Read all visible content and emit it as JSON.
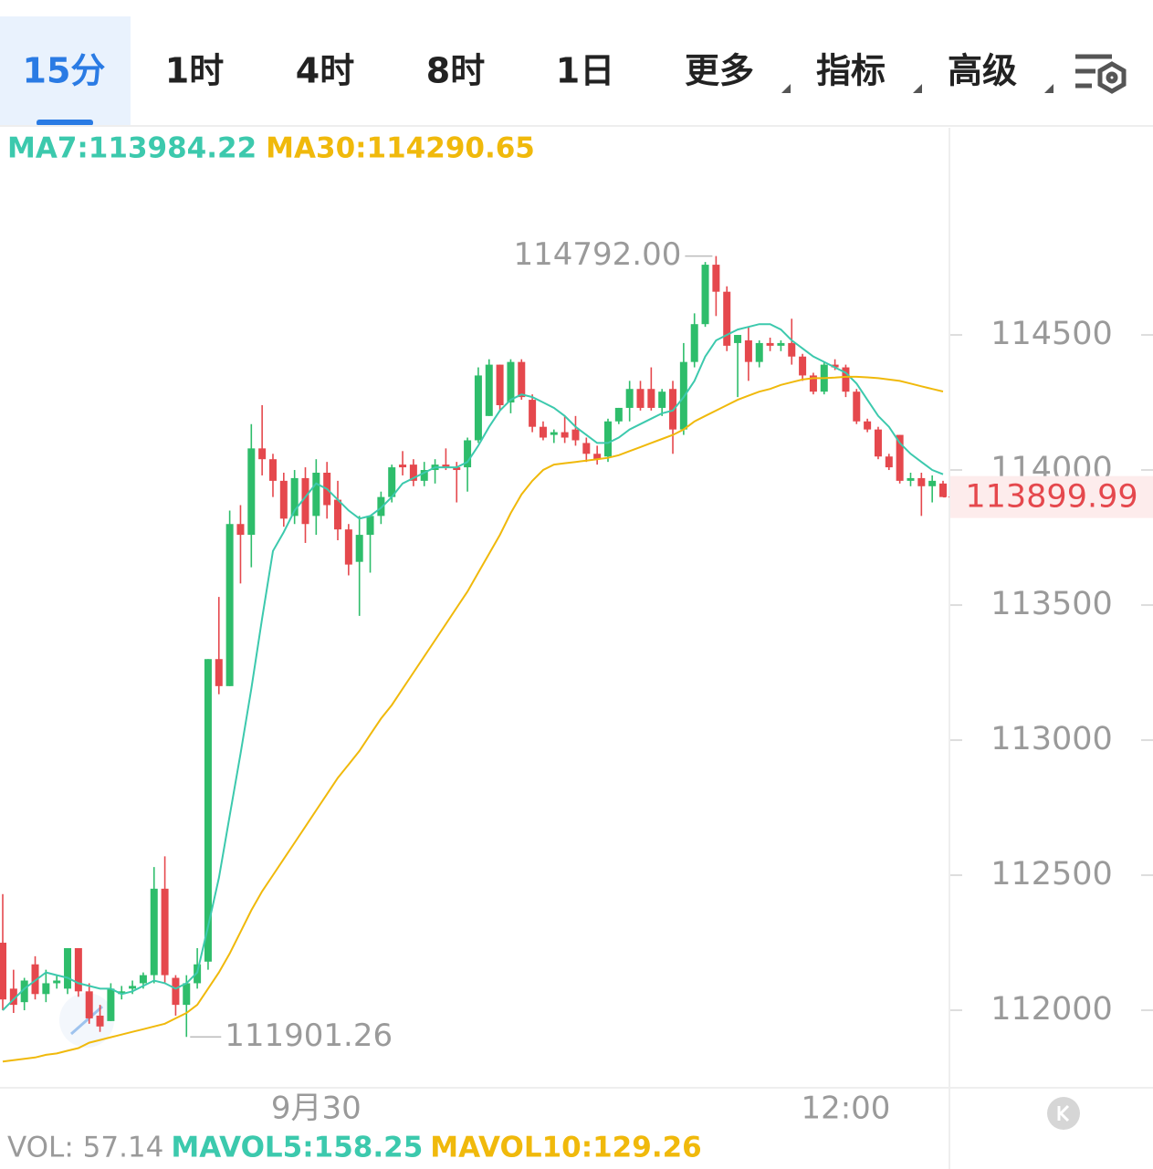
{
  "tabs": {
    "items": [
      "15分",
      "1时",
      "4时",
      "8时",
      "1日",
      "更多",
      "指标",
      "高级"
    ],
    "active": 0
  },
  "chart_data": {
    "type": "candlestick",
    "categories": [
      null,
      null,
      null,
      null,
      null,
      null,
      null,
      null,
      null,
      null,
      null,
      null,
      null,
      null,
      null,
      null,
      null,
      null,
      null,
      null,
      null,
      null,
      null,
      null,
      null,
      null,
      null,
      null,
      null,
      "9月30",
      null,
      null,
      null,
      null,
      null,
      null,
      null,
      null,
      null,
      null,
      null,
      null,
      null,
      null,
      null,
      null,
      null,
      null,
      null,
      null,
      null,
      null,
      null,
      null,
      null,
      null,
      null,
      null,
      null,
      null,
      null,
      null,
      null,
      null,
      null,
      null,
      null,
      null,
      null,
      null,
      null,
      null,
      null,
      null,
      null,
      null,
      null,
      null,
      "12:00",
      null,
      null,
      null,
      null,
      null,
      null,
      null,
      null,
      null
    ],
    "open": [
      112250,
      112080,
      112030,
      112170,
      112060,
      112100,
      112080,
      112230,
      112070,
      111980,
      111960,
      112060,
      112080,
      112100,
      112130,
      112450,
      112120,
      112020,
      112100,
      112180,
      113300,
      113200,
      113800,
      113760,
      114080,
      114040,
      113960,
      113830,
      113970,
      113830,
      113990,
      113890,
      113780,
      113660,
      113760,
      113830,
      113900,
      114020,
      114020,
      113960,
      114000,
      114020,
      114010,
      114010,
      114110,
      114200,
      114390,
      114250,
      114400,
      114260,
      114160,
      114130,
      114140,
      114150,
      114100,
      114060,
      114050,
      114180,
      114230,
      114300,
      114300,
      114230,
      114300,
      114150,
      114400,
      114540,
      114760,
      114660,
      114470,
      114480,
      114400,
      114470,
      114460,
      114470,
      114420,
      114350,
      114290,
      114390,
      114380,
      114290,
      114180,
      114150,
      114050,
      114130,
      113960,
      113970,
      113940,
      113950
    ],
    "high": [
      112430,
      112150,
      112120,
      112200,
      112150,
      112130,
      112230,
      112230,
      112100,
      112020,
      112100,
      112090,
      112110,
      112140,
      112530,
      112570,
      112130,
      112130,
      112230,
      113300,
      113530,
      113850,
      113870,
      114170,
      114240,
      114060,
      113990,
      114000,
      114010,
      114040,
      114030,
      113960,
      113800,
      113830,
      113830,
      113920,
      114020,
      114070,
      114040,
      114030,
      114040,
      114080,
      114030,
      114120,
      114380,
      114410,
      114390,
      114410,
      114410,
      114280,
      114180,
      114150,
      114200,
      114200,
      114120,
      114090,
      114190,
      114230,
      114330,
      114330,
      114380,
      114300,
      114330,
      114470,
      114580,
      114770,
      114792,
      114680,
      114500,
      114530,
      114480,
      114490,
      114480,
      114560,
      114430,
      114360,
      114400,
      114410,
      114390,
      114300,
      114190,
      114160,
      114060,
      114130,
      113990,
      113990,
      113980,
      113960
    ],
    "low": [
      112000,
      111990,
      112000,
      112040,
      112030,
      112080,
      112060,
      112050,
      111950,
      111920,
      111960,
      112040,
      112060,
      112080,
      112100,
      112100,
      111980,
      111901.26,
      112080,
      112150,
      113170,
      113200,
      113580,
      113640,
      113980,
      113900,
      113790,
      113800,
      113730,
      113760,
      113820,
      113740,
      113610,
      113460,
      113620,
      113800,
      113880,
      113980,
      113940,
      113940,
      113950,
      114000,
      113880,
      113920,
      114100,
      114200,
      114220,
      114210,
      114260,
      114140,
      114110,
      114100,
      114100,
      114090,
      114030,
      114020,
      114030,
      114170,
      114180,
      114220,
      114220,
      114200,
      114060,
      114130,
      114380,
      114530,
      114570,
      114440,
      114270,
      114330,
      114380,
      114440,
      114440,
      114390,
      114330,
      114280,
      114280,
      114370,
      114270,
      114170,
      114140,
      114040,
      114000,
      113950,
      113940,
      113830,
      113880,
      113900
    ],
    "close": [
      112040,
      112020,
      112110,
      112060,
      112100,
      112110,
      112230,
      112070,
      111970,
      111940,
      112080,
      112070,
      112090,
      112130,
      112450,
      112130,
      112020,
      112100,
      112170,
      113300,
      113200,
      113800,
      113760,
      114080,
      114040,
      113960,
      113820,
      113970,
      113800,
      113990,
      113870,
      113780,
      113650,
      113760,
      113830,
      113900,
      114010,
      114010,
      113960,
      114000,
      114020,
      114010,
      114000,
      114110,
      114350,
      114390,
      114240,
      114400,
      114270,
      114160,
      114120,
      114140,
      114120,
      114110,
      114060,
      114040,
      114180,
      114230,
      114300,
      114230,
      114230,
      114290,
      114150,
      114400,
      114540,
      114760,
      114660,
      114460,
      114500,
      114400,
      114470,
      114460,
      114470,
      114420,
      114350,
      114290,
      114390,
      114380,
      114290,
      114180,
      114150,
      114050,
      114010,
      113960,
      113970,
      113940,
      113960,
      113899.99
    ],
    "up_color": "#2ebd6b",
    "down_color": "#e5484d",
    "series": [
      {
        "name": "MA7:113984.22",
        "color": "#3cc9ad",
        "values": [
          112000,
          112040,
          112080,
          112110,
          112140,
          112130,
          112120,
          112100,
          112090,
          112080,
          112080,
          112060,
          112070,
          112090,
          112110,
          112100,
          112080,
          112100,
          112140,
          112310,
          112490,
          112720,
          112950,
          113190,
          113450,
          113700,
          113770,
          113850,
          113900,
          113950,
          113930,
          113890,
          113850,
          113820,
          113830,
          113860,
          113900,
          113950,
          113970,
          113990,
          114010,
          114010,
          114010,
          114030,
          114090,
          114160,
          114220,
          114260,
          114280,
          114270,
          114250,
          114230,
          114200,
          114160,
          114130,
          114100,
          114100,
          114120,
          114150,
          114170,
          114190,
          114210,
          114220,
          114270,
          114330,
          114420,
          114480,
          114500,
          114520,
          114530,
          114540,
          114540,
          114520,
          114480,
          114450,
          114420,
          114400,
          114380,
          114360,
          114320,
          114260,
          114200,
          114160,
          114100,
          114060,
          114030,
          114000,
          113984.22
        ]
      },
      {
        "name": "MA30:114290.65",
        "color": "#f0b90b",
        "values": [
          111810,
          111815,
          111820,
          111825,
          111835,
          111840,
          111850,
          111860,
          111880,
          111890,
          111900,
          111910,
          111920,
          111930,
          111940,
          111950,
          111970,
          111990,
          112020,
          112080,
          112140,
          112210,
          112290,
          112370,
          112440,
          112500,
          112560,
          112620,
          112680,
          112740,
          112800,
          112860,
          112910,
          112960,
          113020,
          113080,
          113130,
          113190,
          113250,
          113310,
          113370,
          113430,
          113490,
          113550,
          113620,
          113690,
          113760,
          113840,
          113910,
          113960,
          114000,
          114020,
          114025,
          114030,
          114035,
          114040,
          114045,
          114055,
          114070,
          114085,
          114100,
          114115,
          114130,
          114150,
          114180,
          114200,
          114220,
          114240,
          114260,
          114275,
          114290,
          114300,
          114315,
          114325,
          114335,
          114340,
          114340,
          114342,
          114345,
          114345,
          114343,
          114340,
          114335,
          114330,
          114320,
          114310,
          114300,
          114290.65
        ]
      }
    ],
    "high_label": "114792.00",
    "low_label": "111901.26",
    "ylim": [
      111713,
      115267
    ],
    "yticks": [
      112000,
      112500,
      113000,
      113500,
      114000,
      114500
    ],
    "grid": false,
    "volume_legend": [
      {
        "text": "VOL: 57.14",
        "color": "#9a9a9a"
      },
      {
        "text": "MAVOL5:158.25",
        "color": "#3cc9ad"
      },
      {
        "text": "MAVOL10:129.26",
        "color": "#f0b90b"
      }
    ]
  }
}
